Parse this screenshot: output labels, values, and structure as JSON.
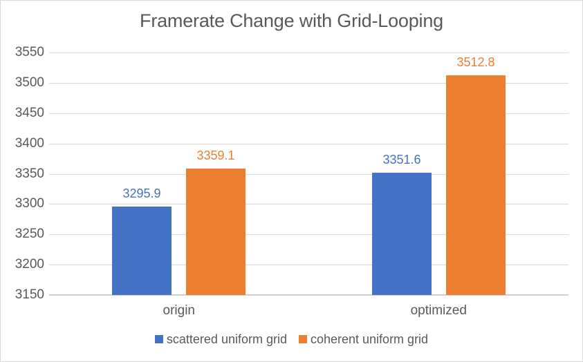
{
  "chart_data": {
    "type": "bar",
    "title": "Framerate Change with Grid-Looping",
    "categories": [
      "origin",
      "optimized"
    ],
    "series": [
      {
        "name": "scattered uniform grid",
        "color": "#4472C4",
        "values": [
          3295.9,
          3351.6
        ]
      },
      {
        "name": "coherent uniform grid",
        "color": "#ED7D31",
        "values": [
          3359.1,
          3512.8
        ]
      }
    ],
    "ylim": [
      3150,
      3550
    ],
    "yticks": [
      3150,
      3200,
      3250,
      3300,
      3350,
      3400,
      3450,
      3500,
      3550
    ],
    "grid": true,
    "data_labels": true,
    "legend_position": "bottom",
    "xlabel": "",
    "ylabel": ""
  },
  "style": {
    "title_color": "#595959",
    "axis_text_color": "#595959",
    "gridline_color": "#D9D9D9",
    "axis_line_color": "#D0CECE",
    "border_color": "#D9D9D9",
    "background": "#FFFFFF"
  }
}
